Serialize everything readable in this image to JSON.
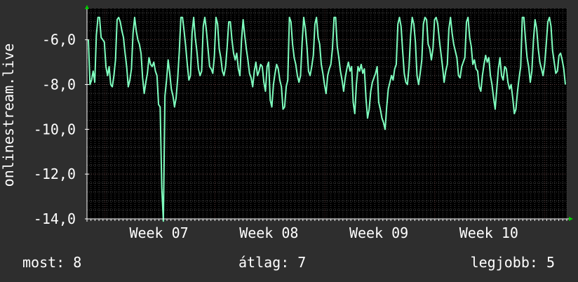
{
  "chart_data": {
    "type": "line",
    "ylabel": "onlinestream.live",
    "ylim": [
      -14,
      -4.6
    ],
    "y_ticks": [
      -14,
      -12,
      -10,
      -8,
      -6
    ],
    "y_tick_labels": [
      "-14,0",
      "-12,0",
      "-10,0",
      "-8,0",
      "-6,0"
    ],
    "x_labels": [
      "Week 07",
      "Week 08",
      "Week 09",
      "Week 10"
    ],
    "xlim": [
      0,
      120
    ],
    "x_label_positions": [
      18,
      45.5,
      73,
      100.5
    ],
    "grid": true,
    "colors": {
      "background": "#2e2e2e",
      "plot_background": "#000000",
      "grid": "#484848",
      "grid_major": "#5a3a3a",
      "axis": "#ffffff",
      "line": "#7fffbf",
      "arrow": "#00cc00",
      "text": "#ffffff"
    },
    "series": [
      {
        "values": [
          -6,
          -8,
          -7.8,
          -7.4,
          -7.9,
          -5.8,
          -5,
          -5,
          -5.9,
          -6,
          -6.1,
          -7.2,
          -7.6,
          -7.2,
          -8,
          -8.1,
          -7.6,
          -6.9,
          -5.1,
          -5,
          -5.2,
          -5.6,
          -5.9,
          -6.6,
          -7.2,
          -8.1,
          -7.8,
          -7.3,
          -5.7,
          -5,
          -5.6,
          -6,
          -6.2,
          -6.6,
          -7.7,
          -8.4,
          -7.9,
          -7.5,
          -6.8,
          -7.1,
          -7.2,
          -7,
          -7.4,
          -7.6,
          -8.9,
          -9,
          -12.6,
          -14.1,
          -8.5,
          -7.8,
          -6.9,
          -7.5,
          -8.2,
          -8.5,
          -9,
          -8.6,
          -7.7,
          -6.5,
          -5,
          -5,
          -5.6,
          -6.3,
          -7.1,
          -7.8,
          -7.6,
          -5.7,
          -5,
          -5.9,
          -6.5,
          -7.3,
          -7.6,
          -7.4,
          -5.4,
          -5,
          -5.6,
          -6.4,
          -7.2,
          -7.3,
          -7.5,
          -6.7,
          -5,
          -5.3,
          -6.4,
          -6.8,
          -7.4,
          -7.6,
          -7.2,
          -6.3,
          -5.2,
          -5.2,
          -6,
          -6.6,
          -6.9,
          -6.6,
          -7.3,
          -7.6,
          -6,
          -5.1,
          -5.8,
          -6.4,
          -6.9,
          -7.5,
          -7.7,
          -8.1,
          -7.4,
          -7,
          -7.6,
          -7.4,
          -7.1,
          -7.2,
          -7.9,
          -8.3,
          -7.2,
          -7,
          -8.7,
          -9,
          -8,
          -7.5,
          -7.1,
          -7.3,
          -7.8,
          -8.1,
          -9.1,
          -9,
          -8.1,
          -7.8,
          -5,
          -5.2,
          -6.2,
          -6.8,
          -7.1,
          -7.6,
          -7.9,
          -7.6,
          -6.1,
          -5,
          -5.5,
          -6.3,
          -7.4,
          -7.6,
          -7.2,
          -6.7,
          -5.3,
          -5,
          -5.9,
          -6.2,
          -7.1,
          -7.5,
          -8,
          -8.4,
          -7.6,
          -7.3,
          -7.1,
          -6.4,
          -5,
          -5,
          -6.3,
          -6.8,
          -7.4,
          -7.8,
          -8.3,
          -7.7,
          -7.3,
          -7,
          -7.4,
          -7.2,
          -8.8,
          -9.3,
          -8,
          -7.2,
          -7.4,
          -7.1,
          -7.5,
          -7.3,
          -8.6,
          -9.5,
          -9.1,
          -8.3,
          -7.9,
          -7.7,
          -7.5,
          -7.2,
          -8.8,
          -9.1,
          -9.5,
          -9.7,
          -10,
          -9,
          -8.2,
          -7.9,
          -7.6,
          -7.8,
          -7.3,
          -7.1,
          -5.3,
          -5,
          -5.4,
          -6.5,
          -7.5,
          -7.9,
          -8,
          -7.2,
          -5.8,
          -5,
          -5.3,
          -6.1,
          -7.6,
          -8,
          -7.5,
          -6.9,
          -5.3,
          -5,
          -5.1,
          -6.2,
          -6.4,
          -6.9,
          -6.4,
          -5.1,
          -5,
          -5.3,
          -6,
          -6.6,
          -7.2,
          -7.9,
          -7.4,
          -7.1,
          -5.5,
          -5,
          -5.7,
          -6.2,
          -6.5,
          -6.8,
          -7.6,
          -7.7,
          -7.2,
          -7,
          -6.8,
          -5.2,
          -5,
          -5.9,
          -6.3,
          -7.1,
          -6.9,
          -7.3,
          -7.4,
          -8.1,
          -8.3,
          -7.6,
          -7.1,
          -6.7,
          -7,
          -6.8,
          -7.6,
          -8,
          -8.6,
          -9.1,
          -8.2,
          -7.3,
          -6.8,
          -7.6,
          -7.8,
          -7.2,
          -7.3,
          -7.9,
          -8.2,
          -8,
          -8.6,
          -9.3,
          -9.1,
          -8.3,
          -7.7,
          -7.2,
          -5,
          -5,
          -6,
          -6.8,
          -7.2,
          -7.9,
          -7.4,
          -6,
          -5.1,
          -5.5,
          -6.4,
          -7,
          -7.3,
          -7.6,
          -7.1,
          -6.2,
          -5.2,
          -5,
          -5.4,
          -6.5,
          -7,
          -7.5,
          -7.4,
          -6.7,
          -6.6,
          -6.9,
          -7.3,
          -8
        ]
      }
    ]
  },
  "stats": {
    "now": "most: 8",
    "avg": "átlag: 7",
    "best": "legjobb: 5"
  }
}
